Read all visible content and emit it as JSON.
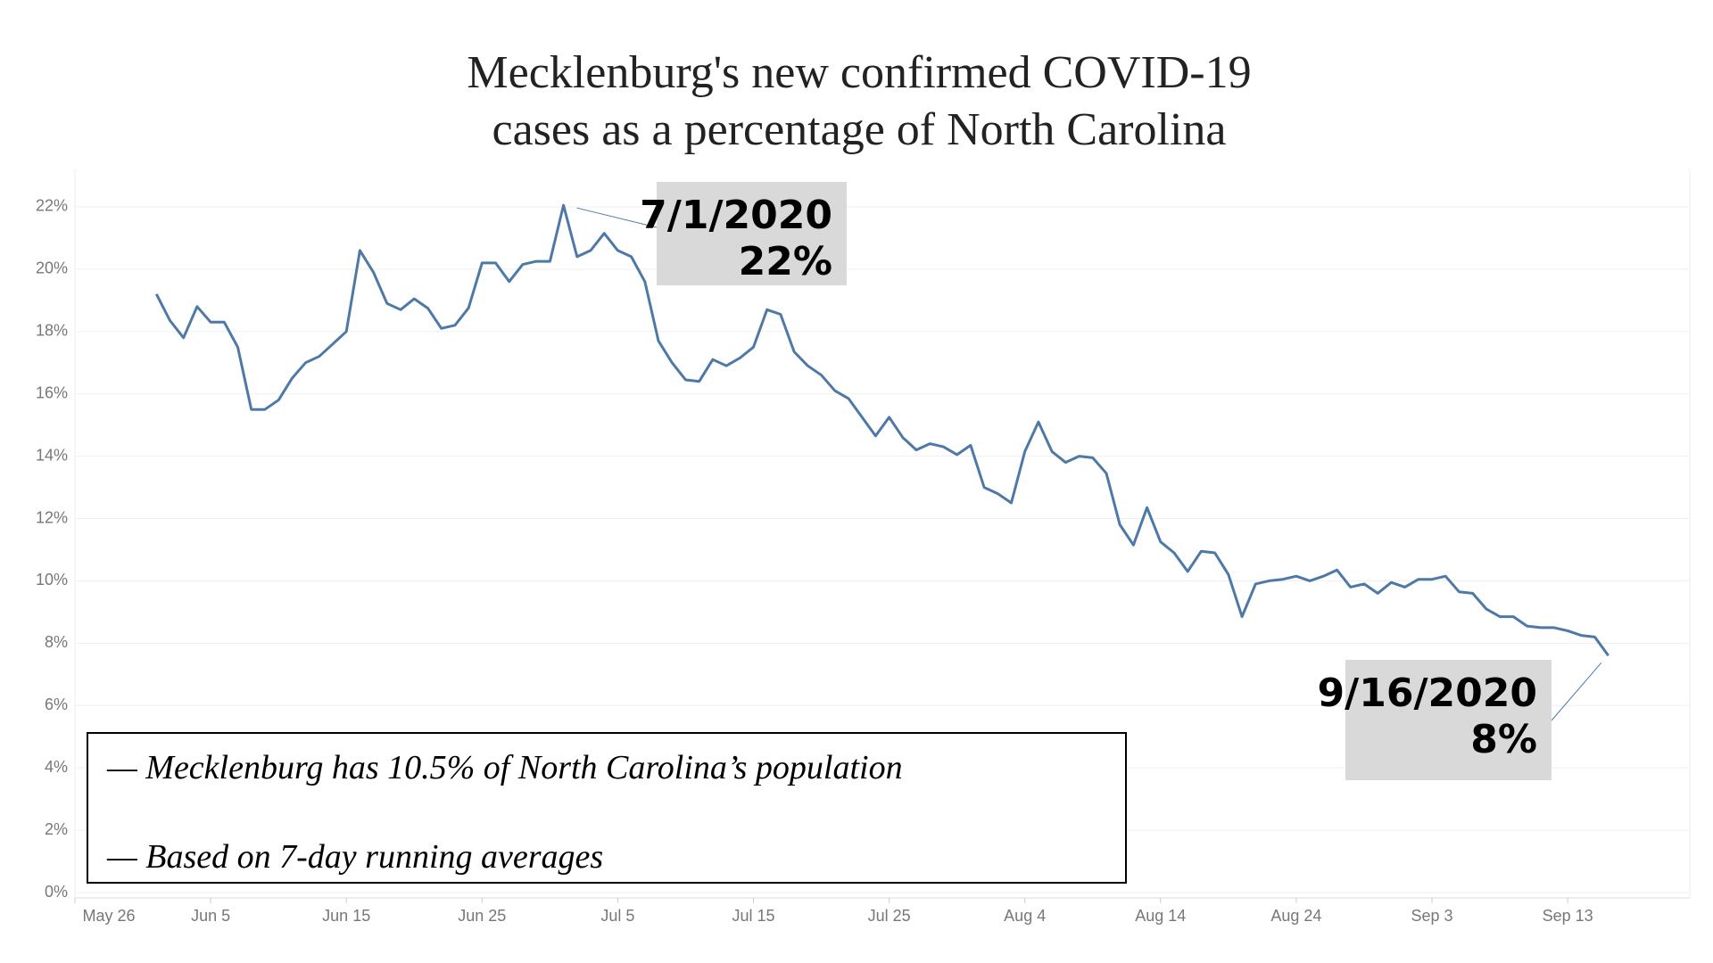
{
  "chart_data": {
    "type": "line",
    "title": [
      "Mecklenburg's new confirmed COVID-19",
      "cases as a percentage of North Carolina"
    ],
    "x": [
      153,
      154,
      155,
      156,
      157,
      158,
      159,
      160,
      161,
      162,
      163,
      164,
      165,
      166,
      167,
      168,
      169,
      170,
      171,
      172,
      173,
      174,
      175,
      176,
      177,
      178,
      179,
      180,
      181,
      182,
      183,
      184,
      185,
      186,
      187,
      188,
      189,
      190,
      191,
      192,
      193,
      194,
      195,
      196,
      197,
      198,
      199,
      200,
      201,
      202,
      203,
      204,
      205,
      206,
      207,
      208,
      209,
      210,
      211,
      212,
      213,
      214,
      215,
      216,
      217,
      218,
      219,
      220,
      221,
      222,
      223,
      224,
      225,
      226,
      227,
      228,
      229,
      230,
      231,
      232,
      233,
      234,
      235,
      236,
      237,
      238,
      239,
      240,
      241,
      242,
      243,
      244,
      245,
      246,
      247,
      248,
      249,
      250,
      251,
      252,
      253,
      254,
      255,
      256,
      257,
      258,
      259,
      260
    ],
    "series": [
      {
        "color": "#4e79a7",
        "values": [
          19.2,
          18.35,
          17.8,
          18.8,
          18.3,
          18.3,
          17.5,
          15.5,
          15.5,
          15.8,
          16.5,
          17.0,
          17.2,
          17.6,
          18.0,
          20.6,
          19.9,
          18.9,
          18.7,
          19.05,
          18.75,
          18.1,
          18.2,
          18.75,
          20.2,
          20.2,
          19.6,
          20.15,
          20.25,
          20.25,
          22.05,
          20.4,
          20.6,
          21.15,
          20.6,
          20.4,
          19.6,
          17.7,
          17.0,
          16.45,
          16.4,
          17.1,
          16.9,
          17.15,
          17.5,
          18.7,
          18.55,
          17.35,
          16.9,
          16.6,
          16.1,
          15.85,
          15.25,
          14.65,
          15.25,
          14.6,
          14.2,
          14.4,
          14.3,
          14.05,
          14.35,
          13.0,
          12.8,
          12.5,
          14.15,
          15.1,
          14.15,
          13.8,
          14.0,
          13.95,
          13.45,
          11.8,
          11.15,
          12.35,
          11.25,
          10.9,
          10.3,
          10.95,
          10.9,
          10.2,
          8.85,
          9.9,
          10.0,
          10.05,
          10.15,
          10.0,
          10.15,
          10.35,
          9.8,
          9.9,
          9.6,
          9.95,
          9.8,
          10.05,
          10.05,
          10.15,
          9.65,
          9.6,
          9.1,
          8.85,
          8.85,
          8.55,
          8.5,
          8.5,
          8.4,
          8.25,
          8.2,
          7.6
        ]
      }
    ],
    "xlim": [
      147,
      266
    ],
    "xticks": [
      {
        "value": 147,
        "label": "May 26"
      },
      {
        "value": 157,
        "label": "Jun 5"
      },
      {
        "value": 167,
        "label": "Jun 15"
      },
      {
        "value": 177,
        "label": "Jun 25"
      },
      {
        "value": 187,
        "label": "Jul 5"
      },
      {
        "value": 197,
        "label": "Jul 15"
      },
      {
        "value": 207,
        "label": "Jul 25"
      },
      {
        "value": 217,
        "label": "Aug 4"
      },
      {
        "value": 227,
        "label": "Aug 14"
      },
      {
        "value": 237,
        "label": "Aug 24"
      },
      {
        "value": 247,
        "label": "Sep 3"
      },
      {
        "value": 257,
        "label": "Sep 13"
      }
    ],
    "ylim": [
      0,
      23.2
    ],
    "yticks": [
      {
        "value": 0,
        "label": "0%"
      },
      {
        "value": 2,
        "label": "2%"
      },
      {
        "value": 4,
        "label": "4%"
      },
      {
        "value": 6,
        "label": "6%"
      },
      {
        "value": 8,
        "label": "8%"
      },
      {
        "value": 10,
        "label": "10%"
      },
      {
        "value": 12,
        "label": "12%"
      },
      {
        "value": 14,
        "label": "14%"
      },
      {
        "value": 16,
        "label": "16%"
      },
      {
        "value": 18,
        "label": "18%"
      },
      {
        "value": 20,
        "label": "20%"
      },
      {
        "value": 22,
        "label": "22%"
      }
    ],
    "grid": true,
    "annotations": [
      {
        "x": 183,
        "lines": [
          "7/1/2020",
          "22%"
        ]
      },
      {
        "x": 260,
        "lines": [
          "9/16/2020",
          "8%"
        ]
      }
    ],
    "notes": [
      "— Mecklenburg has 10.5% of North Carolina’s population",
      "— Based on 7-day running averages"
    ]
  }
}
